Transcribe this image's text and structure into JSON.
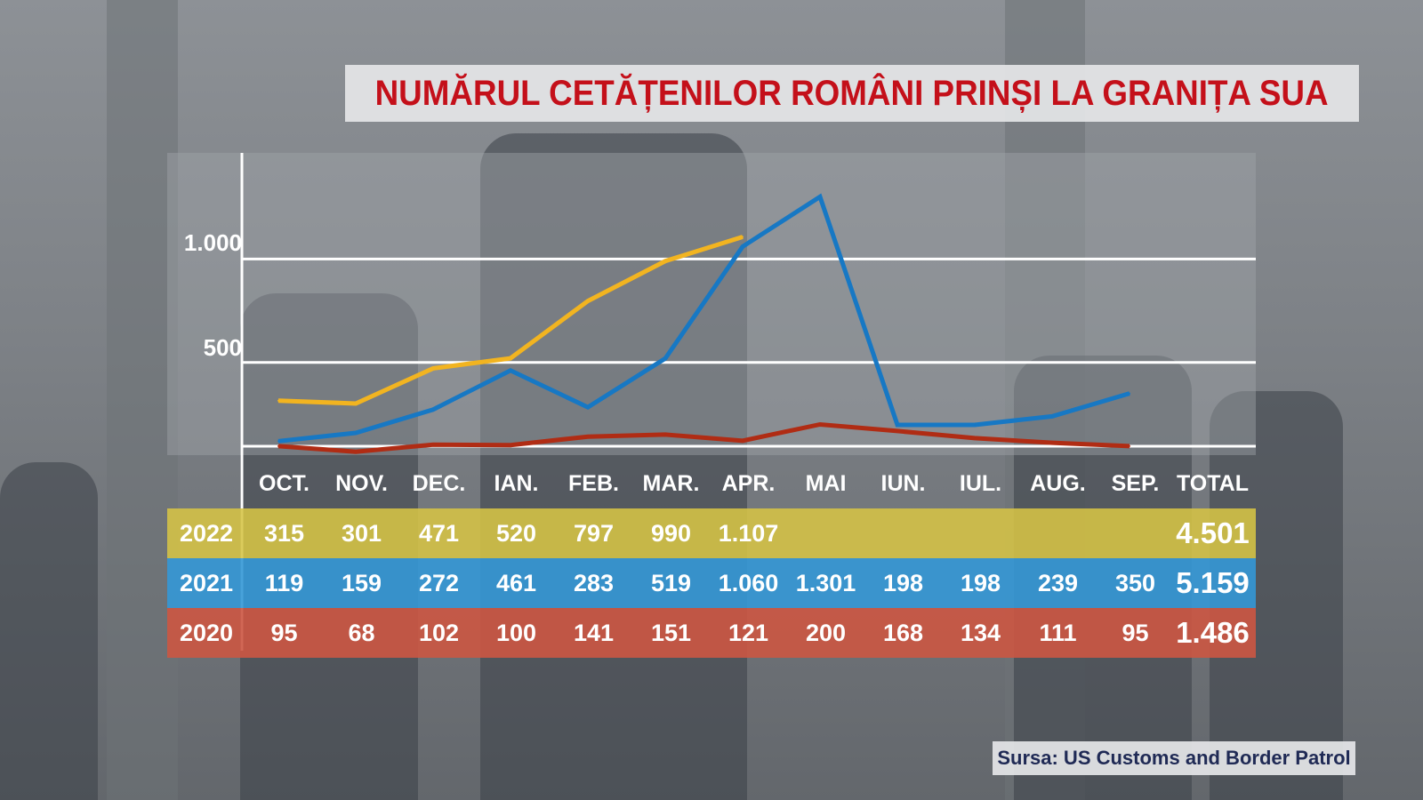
{
  "title": "NUMĂRUL CETĂȚENILOR ROMÂNI PRINȘI LA GRANIȚA SUA",
  "source": "Sursa: US Customs and Border Patrol",
  "colors": {
    "series_2022": "#f2b420",
    "series_2021": "#1778c4",
    "series_2020": "#b02c14",
    "title": "#c4101a"
  },
  "table": {
    "total_header": "TOTAL",
    "rows": [
      {
        "year": "2022",
        "values": [
          "315",
          "301",
          "471",
          "520",
          "797",
          "990",
          "1.107",
          "",
          "",
          "",
          "",
          ""
        ],
        "total": "4.501"
      },
      {
        "year": "2021",
        "values": [
          "119",
          "159",
          "272",
          "461",
          "283",
          "519",
          "1.060",
          "1.301",
          "198",
          "198",
          "239",
          "350"
        ],
        "total": "5.159"
      },
      {
        "year": "2020",
        "values": [
          "95",
          "68",
          "102",
          "100",
          "141",
          "151",
          "121",
          "200",
          "168",
          "134",
          "111",
          "95"
        ],
        "total": "1.486"
      }
    ]
  },
  "chart_data": {
    "type": "line",
    "categories": [
      "OCT.",
      "NOV.",
      "DEC.",
      "IAN.",
      "FEB.",
      "MAR.",
      "APR.",
      "MAI",
      "IUN.",
      "IUL.",
      "AUG.",
      "SEP."
    ],
    "series": [
      {
        "name": "2022",
        "color": "#f2b420",
        "values": [
          315,
          301,
          471,
          520,
          797,
          990,
          1107,
          null,
          null,
          null,
          null,
          null
        ]
      },
      {
        "name": "2021",
        "color": "#1778c4",
        "values": [
          119,
          159,
          272,
          461,
          283,
          519,
          1060,
          1301,
          198,
          198,
          239,
          350
        ]
      },
      {
        "name": "2020",
        "color": "#b02c14",
        "values": [
          95,
          68,
          102,
          100,
          141,
          151,
          121,
          200,
          168,
          134,
          111,
          95
        ]
      }
    ],
    "ytick_labels": [
      "500",
      "1.000"
    ],
    "yticks": [
      500,
      1000
    ],
    "ylim": [
      0,
      1400
    ],
    "grid": true,
    "legend": "table-below"
  }
}
